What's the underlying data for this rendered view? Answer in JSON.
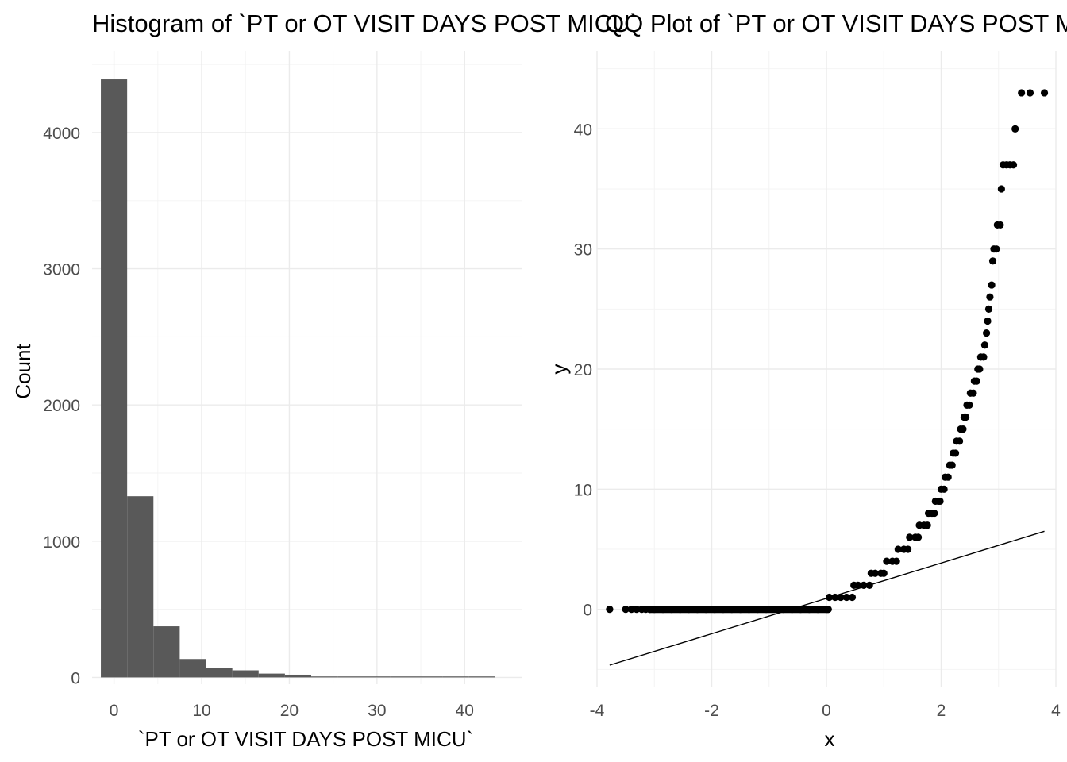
{
  "chart_data": [
    {
      "type": "bar",
      "title": "Histogram of `PT or OT VISIT DAYS POST MICU`",
      "xlabel": "`PT or OT VISIT DAYS POST MICU`",
      "ylabel": "Count",
      "xlim": [
        -2.5,
        46.5
      ],
      "ylim": [
        -50,
        4600
      ],
      "x_ticks": [
        0,
        10,
        20,
        30,
        40
      ],
      "x_tick_labels": [
        "0",
        "10",
        "20",
        "30",
        "40"
      ],
      "y_ticks": [
        0,
        1000,
        2000,
        3000,
        4000
      ],
      "y_tick_labels": [
        "0",
        "1000",
        "2000",
        "3000",
        "4000"
      ],
      "grid": true,
      "bins": [
        {
          "x0": -1.5,
          "x1": 1.5,
          "count": 4390
        },
        {
          "x0": 1.5,
          "x1": 4.5,
          "count": 1330
        },
        {
          "x0": 4.5,
          "x1": 7.5,
          "count": 375
        },
        {
          "x0": 7.5,
          "x1": 10.5,
          "count": 135
        },
        {
          "x0": 10.5,
          "x1": 13.5,
          "count": 70
        },
        {
          "x0": 13.5,
          "x1": 16.5,
          "count": 52
        },
        {
          "x0": 16.5,
          "x1": 19.5,
          "count": 28
        },
        {
          "x0": 19.5,
          "x1": 22.5,
          "count": 20
        },
        {
          "x0": 22.5,
          "x1": 25.5,
          "count": 7
        },
        {
          "x0": 25.5,
          "x1": 28.5,
          "count": 5
        },
        {
          "x0": 28.5,
          "x1": 31.5,
          "count": 4
        },
        {
          "x0": 31.5,
          "x1": 34.5,
          "count": 3
        },
        {
          "x0": 34.5,
          "x1": 37.5,
          "count": 3
        },
        {
          "x0": 37.5,
          "x1": 40.5,
          "count": 2
        },
        {
          "x0": 40.5,
          "x1": 43.5,
          "count": 3
        }
      ],
      "color": "#595959"
    },
    {
      "type": "scatter",
      "title": "QQ Plot of `PT or OT VISIT DAYS POST MICU`",
      "xlabel": "x",
      "ylabel": "y",
      "xlim": [
        -4.0,
        4.0
      ],
      "ylim": [
        -6.5,
        46.5
      ],
      "x_ticks": [
        -4,
        -2,
        0,
        2,
        4
      ],
      "x_tick_labels": [
        "-4",
        "-2",
        "0",
        "2",
        "4"
      ],
      "y_ticks": [
        0,
        10,
        20,
        30,
        40
      ],
      "y_tick_labels": [
        "0",
        "10",
        "20",
        "30",
        "40"
      ],
      "grid": true,
      "points": [
        [
          -3.78,
          0
        ],
        [
          -3.5,
          0
        ],
        [
          -3.4,
          0
        ],
        [
          -3.31,
          0
        ],
        [
          -3.22,
          0
        ],
        [
          -3.15,
          0
        ],
        [
          -3.08,
          0
        ],
        [
          -3.0,
          0
        ],
        [
          -2.85,
          0
        ],
        [
          -2.7,
          0
        ],
        [
          -2.55,
          0
        ],
        [
          -2.4,
          0
        ],
        [
          -2.25,
          0
        ],
        [
          -2.1,
          0
        ],
        [
          -1.95,
          0
        ],
        [
          -1.8,
          0
        ],
        [
          -1.65,
          0
        ],
        [
          -1.5,
          0
        ],
        [
          -1.35,
          0
        ],
        [
          -1.2,
          0
        ],
        [
          -1.05,
          0
        ],
        [
          -0.9,
          0
        ],
        [
          -0.75,
          0
        ],
        [
          -0.6,
          0
        ],
        [
          -0.45,
          0
        ],
        [
          -0.3,
          0
        ],
        [
          -0.15,
          0
        ],
        [
          0.0,
          0
        ],
        [
          0.03,
          0
        ],
        [
          0.05,
          1
        ],
        [
          0.15,
          1
        ],
        [
          0.25,
          1
        ],
        [
          0.35,
          1
        ],
        [
          0.45,
          1
        ],
        [
          0.48,
          2
        ],
        [
          0.55,
          2
        ],
        [
          0.65,
          2
        ],
        [
          0.75,
          2
        ],
        [
          0.78,
          3
        ],
        [
          0.85,
          3
        ],
        [
          0.95,
          3
        ],
        [
          1.0,
          3
        ],
        [
          1.05,
          4
        ],
        [
          1.15,
          4
        ],
        [
          1.22,
          4
        ],
        [
          1.25,
          5
        ],
        [
          1.35,
          5
        ],
        [
          1.42,
          5
        ],
        [
          1.45,
          6
        ],
        [
          1.55,
          6
        ],
        [
          1.6,
          6
        ],
        [
          1.62,
          7
        ],
        [
          1.7,
          7
        ],
        [
          1.76,
          7
        ],
        [
          1.78,
          8
        ],
        [
          1.84,
          8
        ],
        [
          1.88,
          8
        ],
        [
          1.9,
          9
        ],
        [
          1.95,
          9
        ],
        [
          1.98,
          9
        ],
        [
          2.0,
          10
        ],
        [
          2.05,
          10
        ],
        [
          2.07,
          11
        ],
        [
          2.12,
          11
        ],
        [
          2.15,
          12
        ],
        [
          2.19,
          12
        ],
        [
          2.21,
          13
        ],
        [
          2.25,
          13
        ],
        [
          2.27,
          14
        ],
        [
          2.32,
          14
        ],
        [
          2.34,
          15
        ],
        [
          2.38,
          15
        ],
        [
          2.4,
          16
        ],
        [
          2.43,
          16
        ],
        [
          2.45,
          17
        ],
        [
          2.49,
          17
        ],
        [
          2.51,
          18
        ],
        [
          2.56,
          18
        ],
        [
          2.58,
          19
        ],
        [
          2.62,
          19
        ],
        [
          2.64,
          20
        ],
        [
          2.67,
          20
        ],
        [
          2.69,
          21
        ],
        [
          2.74,
          21
        ],
        [
          2.76,
          22
        ],
        [
          2.79,
          23
        ],
        [
          2.81,
          24
        ],
        [
          2.83,
          25
        ],
        [
          2.85,
          26
        ],
        [
          2.88,
          27
        ],
        [
          2.9,
          29
        ],
        [
          2.92,
          30
        ],
        [
          2.96,
          30
        ],
        [
          2.98,
          32
        ],
        [
          3.03,
          32
        ],
        [
          3.05,
          35
        ],
        [
          3.08,
          37
        ],
        [
          3.14,
          37
        ],
        [
          3.2,
          37
        ],
        [
          3.26,
          37
        ],
        [
          3.29,
          40
        ],
        [
          3.4,
          43
        ],
        [
          3.55,
          43
        ],
        [
          3.8,
          43
        ]
      ],
      "reference_line": {
        "x": [
          -3.78,
          3.8
        ],
        "y": [
          -4.65,
          6.5
        ]
      },
      "color": "#000000"
    }
  ]
}
